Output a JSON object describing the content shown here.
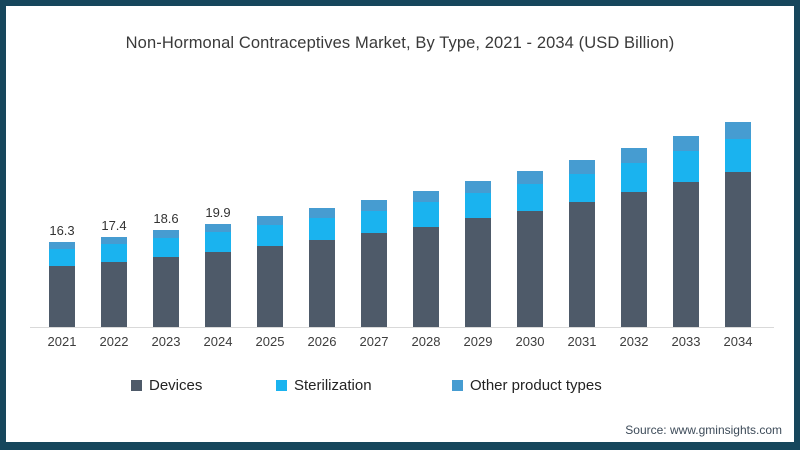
{
  "frame": {
    "border_color": "#16465c",
    "background": "#ffffff"
  },
  "chart_data": {
    "type": "bar",
    "stacked": true,
    "title": "Non-Hormonal Contraceptives Market, By Type, 2021 - 2034 (USD Billion)",
    "unit": "USD Billion",
    "categories": [
      "2021",
      "2022",
      "2023",
      "2024",
      "2025",
      "2026",
      "2027",
      "2028",
      "2029",
      "2030",
      "2031",
      "2032",
      "2033",
      "2034"
    ],
    "series": [
      {
        "name": "Devices",
        "color": "#4e5a69",
        "values": [
          11.7,
          12.6,
          13.5,
          14.5,
          15.6,
          16.8,
          18.0,
          19.3,
          20.9,
          22.4,
          24.1,
          25.9,
          27.8,
          29.9
        ]
      },
      {
        "name": "Sterilization",
        "color": "#1ab3ef",
        "values": [
          3.3,
          3.4,
          3.6,
          3.8,
          4.0,
          4.2,
          4.4,
          4.7,
          4.9,
          5.2,
          5.4,
          5.7,
          6.1,
          6.3
        ]
      },
      {
        "name": "Other product types",
        "color": "#469cd1",
        "values": [
          1.3,
          1.4,
          1.5,
          1.6,
          1.7,
          1.8,
          2.0,
          2.1,
          2.2,
          2.4,
          2.6,
          2.8,
          2.9,
          3.2
        ]
      }
    ],
    "totals": [
      16.3,
      17.4,
      18.6,
      19.9,
      21.3,
      22.8,
      24.4,
      26.1,
      28.0,
      30.0,
      32.1,
      34.4,
      36.8,
      39.4
    ],
    "value_labels": [
      "16.3",
      "17.4",
      "18.6",
      "19.9",
      "",
      "",
      "",
      "",
      "",
      "",
      "",
      "",
      "",
      ""
    ],
    "ylim": [
      0,
      41
    ],
    "grid": false,
    "legend_position": "bottom",
    "source": "Source: www.gminsights.com"
  }
}
